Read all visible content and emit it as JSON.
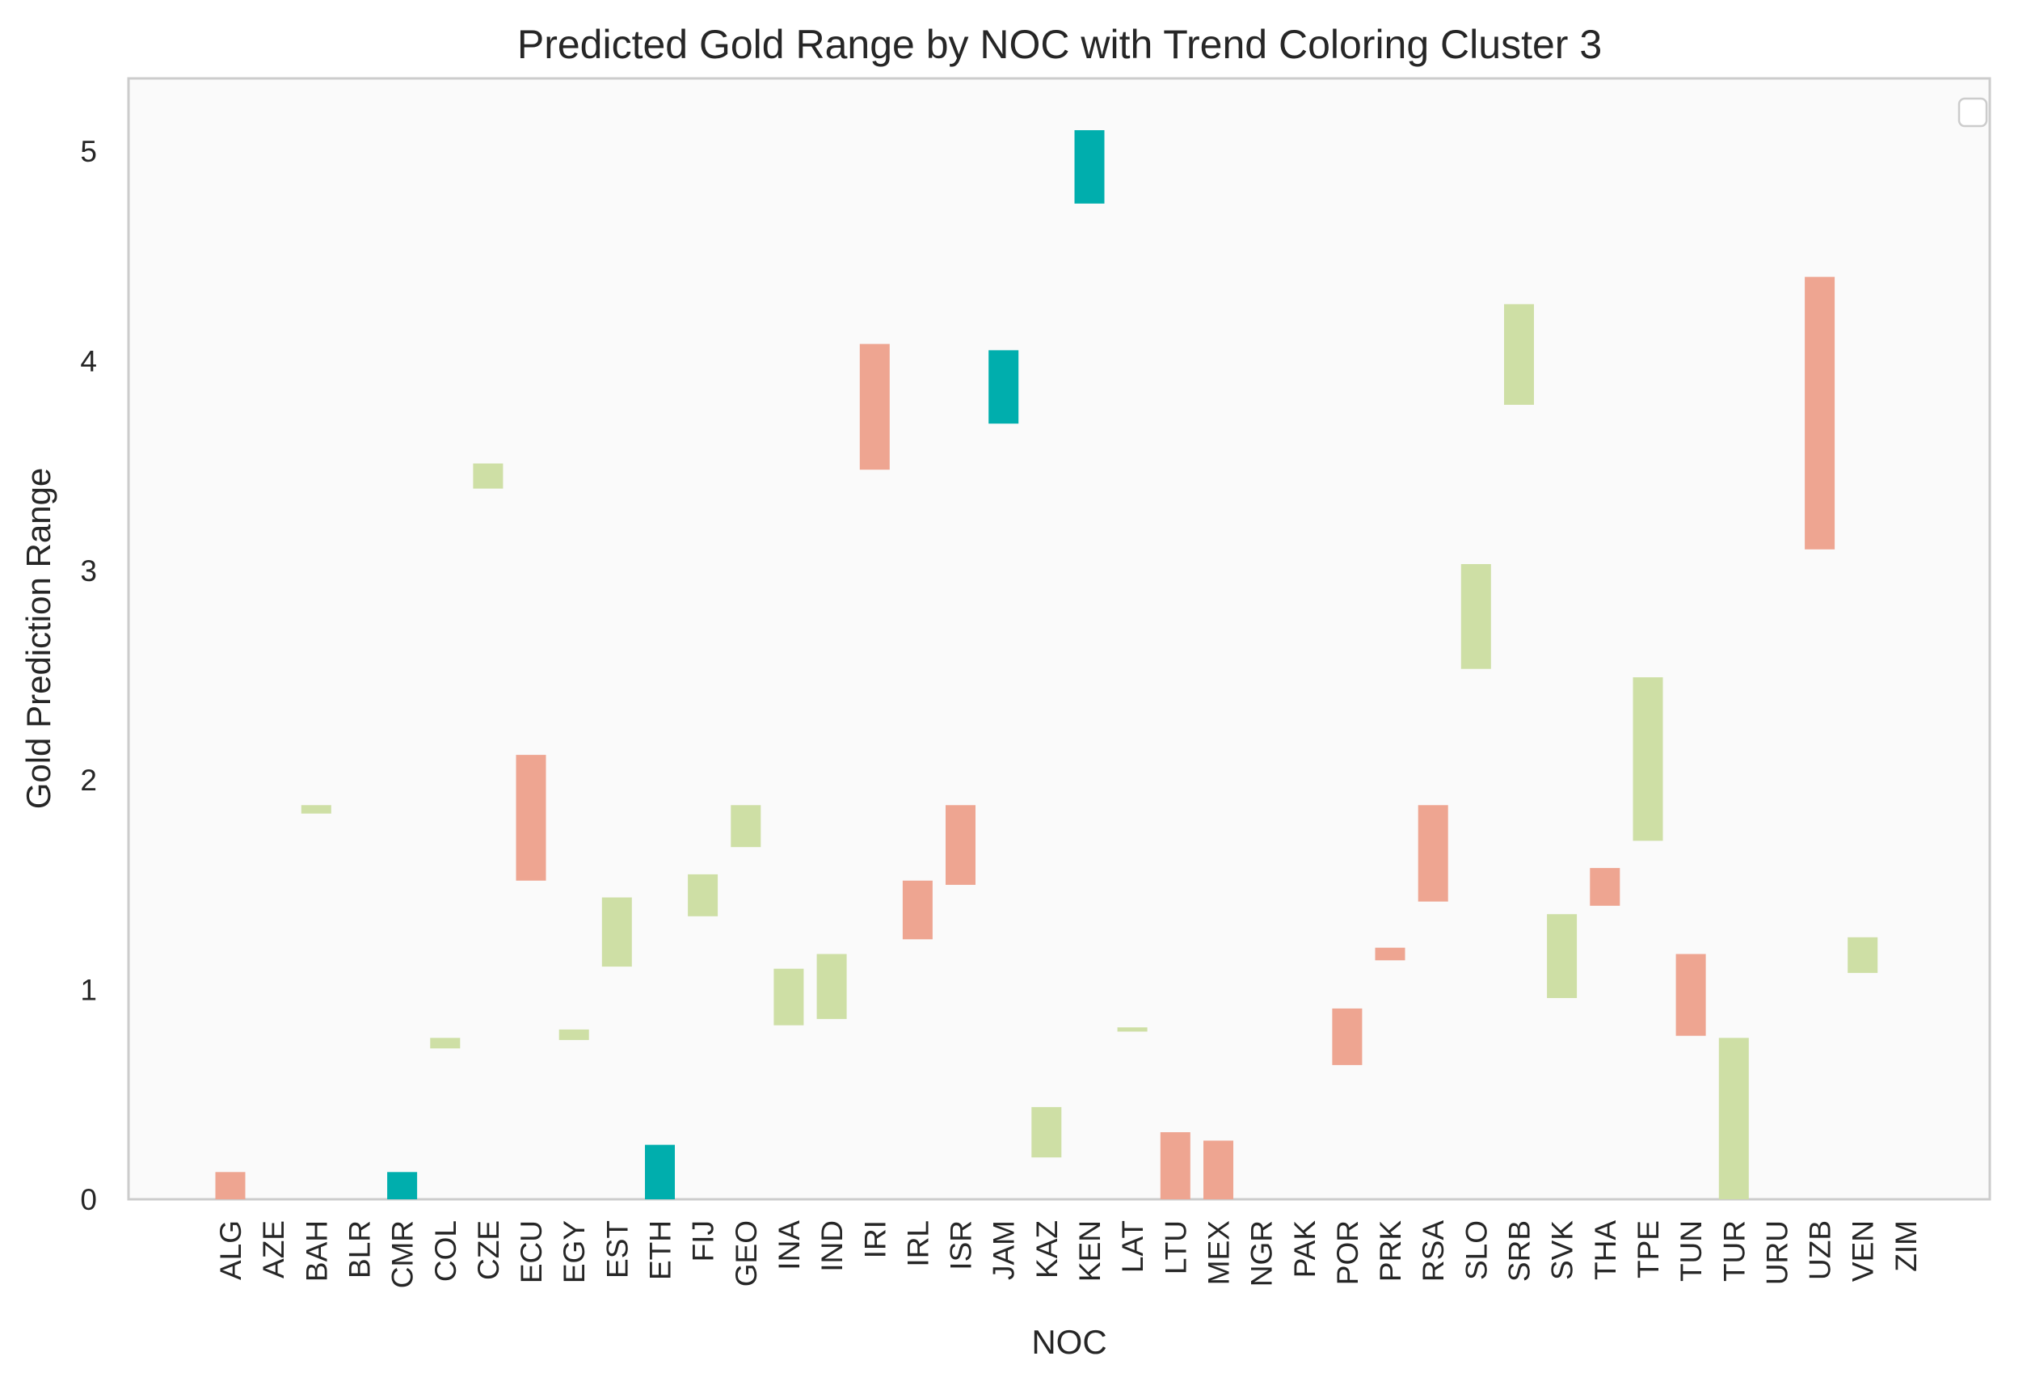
{
  "chart_data": {
    "type": "bar",
    "subtype": "floating-range",
    "title": "Predicted Gold Range by NOC with Trend Coloring Cluster 3",
    "xlabel": "NOC",
    "ylabel": "Gold Prediction Range",
    "ylim": [
      0,
      5.35
    ],
    "yticks": [
      "0",
      "1",
      "2",
      "3",
      "4",
      "5"
    ],
    "grid": false,
    "legend": {
      "placement": "top-right",
      "entries": []
    },
    "colors": {
      "decreasing": "#eea591",
      "stable": "#cedfa5",
      "increasing": "#00aead",
      "plot_background": "#fafafa",
      "frame": "#cccccc"
    },
    "categories": [
      "ALG",
      "AZE",
      "BAH",
      "BLR",
      "CMR",
      "COL",
      "CZE",
      "ECU",
      "EGY",
      "EST",
      "ETH",
      "FIJ",
      "GEO",
      "INA",
      "IND",
      "IRI",
      "IRL",
      "ISR",
      "JAM",
      "KAZ",
      "KEN",
      "LAT",
      "LTU",
      "MEX",
      "NGR",
      "PAK",
      "POR",
      "PRK",
      "RSA",
      "SLO",
      "SRB",
      "SVK",
      "THA",
      "TPE",
      "TUN",
      "TUR",
      "URU",
      "UZB",
      "VEN",
      "ZIM"
    ],
    "bars": [
      {
        "noc": "ALG",
        "low": 0.0,
        "high": 0.13,
        "trend": "decreasing"
      },
      {
        "noc": "AZE",
        "low": null,
        "high": null,
        "trend": null
      },
      {
        "noc": "BAH",
        "low": 1.84,
        "high": 1.88,
        "trend": "stable"
      },
      {
        "noc": "BLR",
        "low": null,
        "high": null,
        "trend": null
      },
      {
        "noc": "CMR",
        "low": 0.0,
        "high": 0.13,
        "trend": "increasing"
      },
      {
        "noc": "COL",
        "low": 0.72,
        "high": 0.77,
        "trend": "stable"
      },
      {
        "noc": "CZE",
        "low": 3.39,
        "high": 3.51,
        "trend": "stable"
      },
      {
        "noc": "ECU",
        "low": 1.52,
        "high": 2.12,
        "trend": "decreasing"
      },
      {
        "noc": "EGY",
        "low": 0.76,
        "high": 0.81,
        "trend": "stable"
      },
      {
        "noc": "EST",
        "low": 1.11,
        "high": 1.44,
        "trend": "stable"
      },
      {
        "noc": "ETH",
        "low": 0.0,
        "high": 0.26,
        "trend": "increasing"
      },
      {
        "noc": "FIJ",
        "low": 1.35,
        "high": 1.55,
        "trend": "stable"
      },
      {
        "noc": "GEO",
        "low": 1.68,
        "high": 1.88,
        "trend": "stable"
      },
      {
        "noc": "INA",
        "low": 0.83,
        "high": 1.1,
        "trend": "stable"
      },
      {
        "noc": "IND",
        "low": 0.86,
        "high": 1.17,
        "trend": "stable"
      },
      {
        "noc": "IRI",
        "low": 3.48,
        "high": 4.08,
        "trend": "decreasing"
      },
      {
        "noc": "IRL",
        "low": 1.24,
        "high": 1.52,
        "trend": "decreasing"
      },
      {
        "noc": "ISR",
        "low": 1.5,
        "high": 1.88,
        "trend": "decreasing"
      },
      {
        "noc": "JAM",
        "low": 3.7,
        "high": 4.05,
        "trend": "increasing"
      },
      {
        "noc": "KAZ",
        "low": 0.2,
        "high": 0.44,
        "trend": "stable"
      },
      {
        "noc": "KEN",
        "low": 4.75,
        "high": 5.1,
        "trend": "increasing"
      },
      {
        "noc": "LAT",
        "low": 0.8,
        "high": 0.82,
        "trend": "stable"
      },
      {
        "noc": "LTU",
        "low": 0.0,
        "high": 0.32,
        "trend": "decreasing"
      },
      {
        "noc": "MEX",
        "low": 0.0,
        "high": 0.28,
        "trend": "decreasing"
      },
      {
        "noc": "NGR",
        "low": null,
        "high": null,
        "trend": null
      },
      {
        "noc": "PAK",
        "low": null,
        "high": null,
        "trend": null
      },
      {
        "noc": "POR",
        "low": 0.64,
        "high": 0.91,
        "trend": "decreasing"
      },
      {
        "noc": "PRK",
        "low": 1.14,
        "high": 1.2,
        "trend": "decreasing"
      },
      {
        "noc": "RSA",
        "low": 1.42,
        "high": 1.88,
        "trend": "decreasing"
      },
      {
        "noc": "SLO",
        "low": 2.53,
        "high": 3.03,
        "trend": "stable"
      },
      {
        "noc": "SRB",
        "low": 3.79,
        "high": 4.27,
        "trend": "stable"
      },
      {
        "noc": "SVK",
        "low": 0.96,
        "high": 1.36,
        "trend": "stable"
      },
      {
        "noc": "THA",
        "low": 1.4,
        "high": 1.58,
        "trend": "decreasing"
      },
      {
        "noc": "TPE",
        "low": 1.71,
        "high": 2.49,
        "trend": "stable"
      },
      {
        "noc": "TUN",
        "low": 0.78,
        "high": 1.17,
        "trend": "decreasing"
      },
      {
        "noc": "TUR",
        "low": 0.0,
        "high": 0.77,
        "trend": "stable"
      },
      {
        "noc": "URU",
        "low": null,
        "high": null,
        "trend": null
      },
      {
        "noc": "UZB",
        "low": 3.1,
        "high": 4.4,
        "trend": "decreasing"
      },
      {
        "noc": "VEN",
        "low": 1.08,
        "high": 1.25,
        "trend": "stable"
      },
      {
        "noc": "ZIM",
        "low": null,
        "high": null,
        "trend": null
      }
    ]
  }
}
